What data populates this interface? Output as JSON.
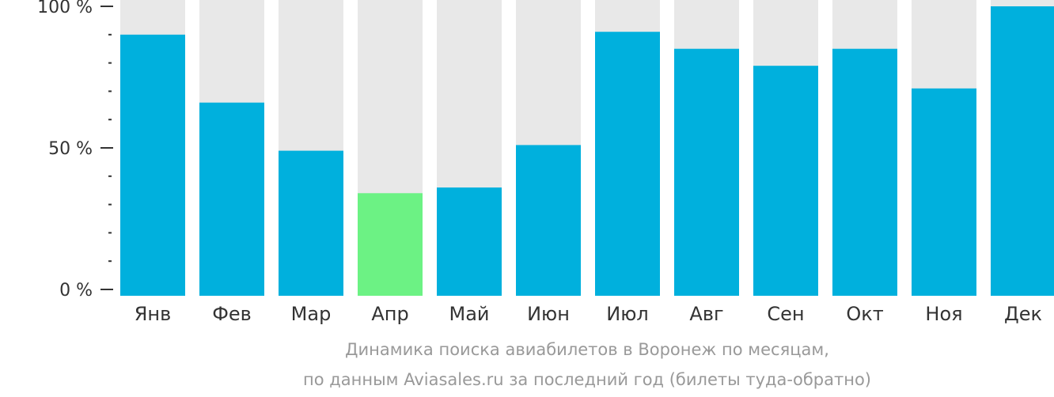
{
  "chart_data": {
    "type": "bar",
    "categories": [
      "Янв",
      "Фев",
      "Мар",
      "Апр",
      "Май",
      "Июн",
      "Июл",
      "Авг",
      "Сен",
      "Окт",
      "Ноя",
      "Дек"
    ],
    "values": [
      90,
      66,
      49,
      34,
      36,
      51,
      91,
      85,
      79,
      85,
      71,
      100
    ],
    "highlight_index": 3,
    "ylim": [
      0,
      100
    ],
    "y_ticks": [
      {
        "value": 0,
        "label": "0 %"
      },
      {
        "value": 50,
        "label": "50 %"
      },
      {
        "value": 100,
        "label": "100 %"
      }
    ],
    "minor_tick_step": 10,
    "colors": {
      "bar": "#00b0dd",
      "highlight": "#6cf284",
      "background_bar": "#e8e8e8",
      "axis": "#333333"
    },
    "title": "",
    "xlabel": "",
    "ylabel": ""
  },
  "caption": {
    "line1": "Динамика поиска авиабилетов в Воронеж по месяцам,",
    "line2": "по данным Aviasales.ru за последний год (билеты туда-обратно)"
  }
}
